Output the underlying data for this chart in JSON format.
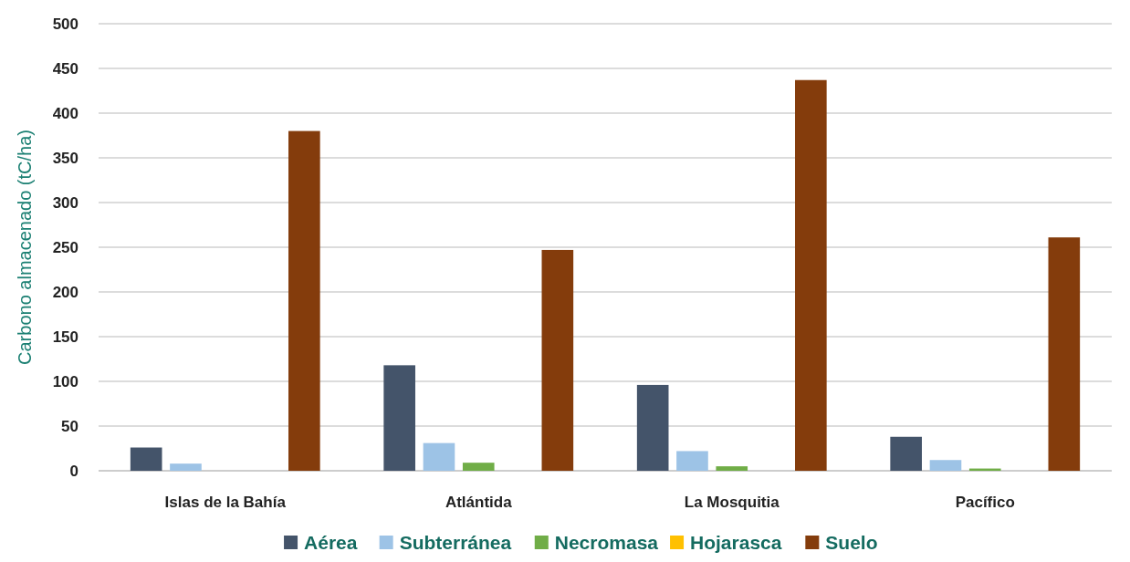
{
  "chart_data": {
    "type": "bar",
    "ylabel": "Carbono almacenado (tC/ha)",
    "categories": [
      "Islas de la Bahía",
      "Atlántida",
      "La Mosquitia",
      "Pacífico"
    ],
    "series": [
      {
        "name": "Aérea",
        "color": "#44546a",
        "values": [
          26,
          118,
          96,
          38
        ]
      },
      {
        "name": "Subterránea",
        "color": "#9dc3e6",
        "values": [
          8,
          31,
          22,
          12
        ]
      },
      {
        "name": "Necromasa",
        "color": "#70ad47",
        "values": [
          0,
          9,
          5,
          2.5
        ]
      },
      {
        "name": "Hojarasca",
        "color": "#ffc000",
        "values": [
          0,
          0,
          0,
          0
        ]
      },
      {
        "name": "Suelo",
        "color": "#843c0c",
        "values": [
          380,
          247,
          437,
          261
        ]
      }
    ],
    "ylim": [
      0,
      500
    ],
    "yticks": [
      0,
      50,
      100,
      150,
      200,
      250,
      300,
      350,
      400,
      450,
      500
    ],
    "grid": "y",
    "legend": "bottom"
  }
}
